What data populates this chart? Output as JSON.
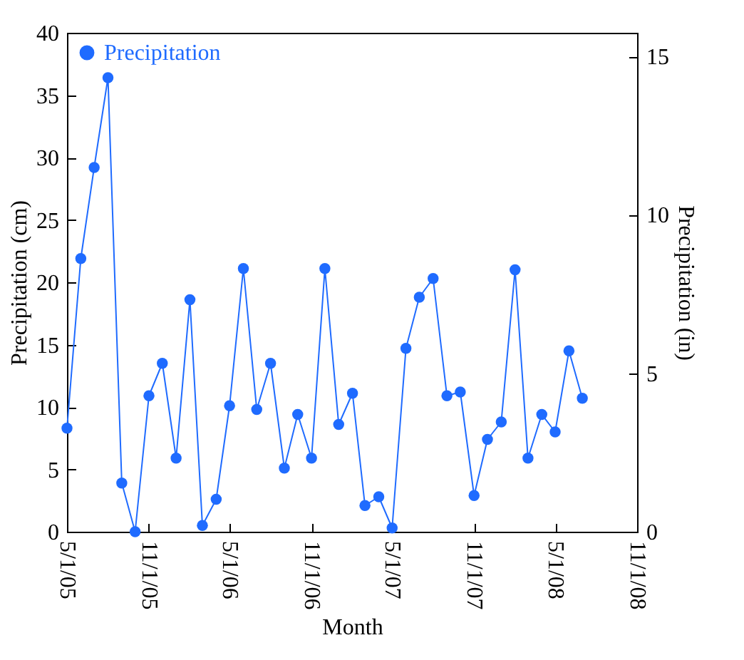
{
  "chart_data": {
    "type": "line",
    "xlabel": "Month",
    "ylabel": "Precipitation (cm)",
    "y2label": "Precipitation (in)",
    "x": [
      "2005-05",
      "2005-06",
      "2005-07",
      "2005-08",
      "2005-09",
      "2005-10",
      "2005-11",
      "2005-12",
      "2006-01",
      "2006-02",
      "2006-03",
      "2006-04",
      "2006-05",
      "2006-06",
      "2006-07",
      "2006-08",
      "2006-09",
      "2006-10",
      "2006-11",
      "2006-12",
      "2007-01",
      "2007-02",
      "2007-03",
      "2007-04",
      "2007-05",
      "2007-06",
      "2007-07",
      "2007-08",
      "2007-09",
      "2007-10",
      "2007-11",
      "2007-12",
      "2008-01",
      "2008-02",
      "2008-03",
      "2008-04",
      "2008-05",
      "2008-06",
      "2008-07"
    ],
    "series": [
      {
        "name": "Precipitation",
        "color": "#1f6bff",
        "values": [
          8.3,
          21.9,
          29.2,
          36.4,
          3.9,
          0,
          10.9,
          13.5,
          5.9,
          18.6,
          0.5,
          2.6,
          10.1,
          21.1,
          9.8,
          13.5,
          5.1,
          9.4,
          5.9,
          21.1,
          8.6,
          11.1,
          2.1,
          2.8,
          0.3,
          14.7,
          18.8,
          20.3,
          10.9,
          11.2,
          2.9,
          7.4,
          8.8,
          21.0,
          5.9,
          9.4,
          8.0,
          14.5,
          10.7
        ]
      }
    ],
    "xlim": [
      "2005-05-01",
      "2008-11-01"
    ],
    "xticks": [
      {
        "value": "2005-05-01",
        "label": "5/1/05"
      },
      {
        "value": "2005-11-01",
        "label": "11/1/05"
      },
      {
        "value": "2006-05-01",
        "label": "5/1/06"
      },
      {
        "value": "2006-11-01",
        "label": "11/1/06"
      },
      {
        "value": "2007-05-01",
        "label": "5/1/07"
      },
      {
        "value": "2007-11-01",
        "label": "11/1/07"
      },
      {
        "value": "2008-05-01",
        "label": "5/1/08"
      },
      {
        "value": "2008-11-01",
        "label": "11/1/08"
      }
    ],
    "ylim": [
      0,
      40
    ],
    "yticks": [
      0,
      5,
      10,
      15,
      20,
      25,
      30,
      35,
      40
    ],
    "y2lim": [
      0,
      15.748
    ],
    "y2ticks": [
      0,
      5,
      10,
      15
    ],
    "legend": "top left",
    "marker": "circle",
    "line_style": "solid",
    "grid": false
  }
}
